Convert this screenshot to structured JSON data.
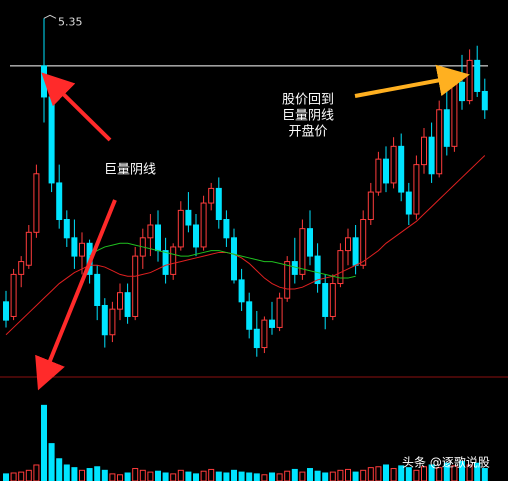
{
  "chart_data": {
    "type": "candlestick",
    "ylim": [
      3.4,
      5.45
    ],
    "up_color": "#ff3c3c",
    "down_color": "#00e4ff",
    "candles": {
      "open": [
        3.8,
        3.72,
        3.95,
        4.0,
        4.18,
        5.09,
        4.92,
        4.45,
        4.25,
        4.15,
        4.05,
        4.12,
        3.95,
        3.78,
        3.62,
        3.76,
        3.85,
        3.72,
        4.05,
        4.15,
        4.22,
        4.08,
        3.95,
        4.1,
        4.3,
        4.22,
        4.1,
        4.34,
        4.42,
        4.25,
        4.15,
        3.92,
        3.8,
        3.65,
        3.55,
        3.7,
        3.66,
        3.82,
        4.02,
        3.95,
        4.2,
        4.05,
        3.9,
        3.72,
        3.9,
        4.08,
        4.15,
        4.0,
        4.25,
        4.4,
        4.58,
        4.45,
        4.65,
        4.4,
        4.28,
        4.55,
        4.7,
        4.5,
        4.85,
        4.65,
        5.0,
        4.9,
        5.12,
        4.95
      ],
      "high": [
        3.86,
        3.98,
        4.05,
        4.22,
        4.55,
        5.35,
        4.98,
        4.55,
        4.3,
        4.25,
        4.18,
        4.14,
        4.0,
        3.82,
        3.8,
        3.9,
        3.9,
        4.1,
        4.2,
        4.28,
        4.3,
        4.15,
        4.12,
        4.35,
        4.4,
        4.28,
        4.38,
        4.45,
        4.48,
        4.3,
        4.2,
        3.98,
        3.85,
        3.75,
        3.72,
        3.8,
        3.85,
        4.05,
        4.15,
        4.25,
        4.3,
        4.12,
        3.95,
        3.95,
        4.12,
        4.2,
        4.22,
        4.3,
        4.45,
        4.62,
        4.65,
        4.7,
        4.72,
        4.45,
        4.6,
        4.75,
        4.78,
        4.9,
        5.0,
        5.05,
        5.15,
        5.18,
        5.2,
        5.02
      ],
      "low": [
        3.66,
        3.7,
        3.88,
        3.98,
        4.15,
        4.78,
        4.4,
        4.2,
        4.1,
        3.98,
        3.95,
        3.9,
        3.7,
        3.55,
        3.58,
        3.7,
        3.68,
        3.7,
        3.98,
        4.05,
        4.02,
        3.9,
        3.92,
        4.08,
        4.18,
        4.05,
        4.08,
        4.3,
        4.2,
        4.1,
        3.9,
        3.75,
        3.6,
        3.5,
        3.52,
        3.62,
        3.64,
        3.8,
        3.9,
        3.92,
        4.0,
        3.85,
        3.65,
        3.7,
        3.88,
        4.0,
        3.95,
        3.98,
        4.22,
        4.38,
        4.4,
        4.42,
        4.35,
        4.22,
        4.25,
        4.5,
        4.45,
        4.48,
        4.6,
        4.62,
        4.85,
        4.88,
        4.92,
        4.8
      ],
      "close": [
        3.7,
        3.95,
        4.02,
        4.18,
        4.5,
        4.92,
        4.45,
        4.25,
        4.15,
        4.05,
        4.12,
        3.95,
        3.78,
        3.62,
        3.76,
        3.85,
        3.72,
        4.05,
        4.15,
        4.22,
        4.08,
        3.95,
        4.1,
        4.3,
        4.22,
        4.1,
        4.34,
        4.42,
        4.25,
        4.15,
        3.92,
        3.8,
        3.65,
        3.55,
        3.7,
        3.66,
        3.82,
        4.02,
        3.95,
        4.2,
        4.05,
        3.9,
        3.72,
        3.9,
        4.08,
        4.15,
        4.0,
        4.25,
        4.4,
        4.58,
        4.45,
        4.65,
        4.4,
        4.28,
        4.55,
        4.7,
        4.5,
        4.85,
        4.65,
        5.0,
        4.9,
        5.12,
        4.95,
        4.85
      ]
    },
    "lines": [
      {
        "color": "#e02020",
        "values": [
          3.62,
          3.66,
          3.7,
          3.74,
          3.78,
          3.82,
          3.86,
          3.9,
          3.93,
          3.96,
          3.98,
          4.0,
          4.0,
          3.99,
          3.97,
          3.95,
          3.94,
          3.94,
          3.95,
          3.96,
          3.98,
          4.0,
          4.01,
          4.02,
          4.03,
          4.04,
          4.05,
          4.06,
          4.07,
          4.07,
          4.06,
          4.04,
          4.01,
          3.97,
          3.93,
          3.9,
          3.88,
          3.87,
          3.87,
          3.88,
          3.9,
          3.92,
          3.93,
          3.94,
          3.96,
          3.98,
          4.0,
          4.02,
          4.05,
          4.08,
          4.12,
          4.15,
          4.18,
          4.21,
          4.24,
          4.28,
          4.32,
          4.36,
          4.4,
          4.44,
          4.48,
          4.52,
          4.56,
          4.6
        ]
      },
      {
        "color": "#20c020",
        "values": [
          null,
          null,
          null,
          null,
          null,
          null,
          null,
          null,
          null,
          null,
          null,
          4.05,
          4.08,
          4.1,
          4.11,
          4.12,
          4.12,
          4.11,
          4.1,
          4.09,
          4.08,
          4.07,
          4.06,
          4.05,
          4.05,
          4.06,
          4.07,
          4.08,
          4.08,
          4.07,
          4.06,
          4.05,
          4.04,
          4.03,
          4.02,
          4.02,
          4.01,
          4.0,
          3.99,
          3.98,
          3.97,
          3.96,
          3.95,
          3.94,
          3.93,
          3.93,
          3.94,
          null,
          null,
          null,
          null,
          null,
          null,
          null,
          null,
          null,
          null,
          null,
          null,
          null,
          null,
          null,
          null,
          null
        ]
      }
    ],
    "hline": {
      "value": 5.09,
      "color": "#ffffff"
    },
    "high_label": "5.35",
    "volume": {
      "ylim": [
        0,
        100
      ],
      "values": [
        8,
        9,
        10,
        12,
        18,
        85,
        42,
        25,
        18,
        15,
        12,
        14,
        16,
        12,
        8,
        7,
        9,
        14,
        12,
        10,
        11,
        9,
        8,
        12,
        10,
        8,
        11,
        13,
        10,
        9,
        12,
        10,
        9,
        8,
        7,
        9,
        8,
        11,
        13,
        10,
        14,
        11,
        9,
        10,
        12,
        13,
        10,
        12,
        15,
        16,
        18,
        14,
        17,
        15,
        12,
        16,
        18,
        15,
        20,
        17,
        22,
        18,
        20,
        14
      ]
    },
    "annotations": [
      "巨量阴线",
      "股价回到",
      "巨量阴线",
      "开盘价"
    ],
    "watermark": "头条 @逐歌说股"
  }
}
